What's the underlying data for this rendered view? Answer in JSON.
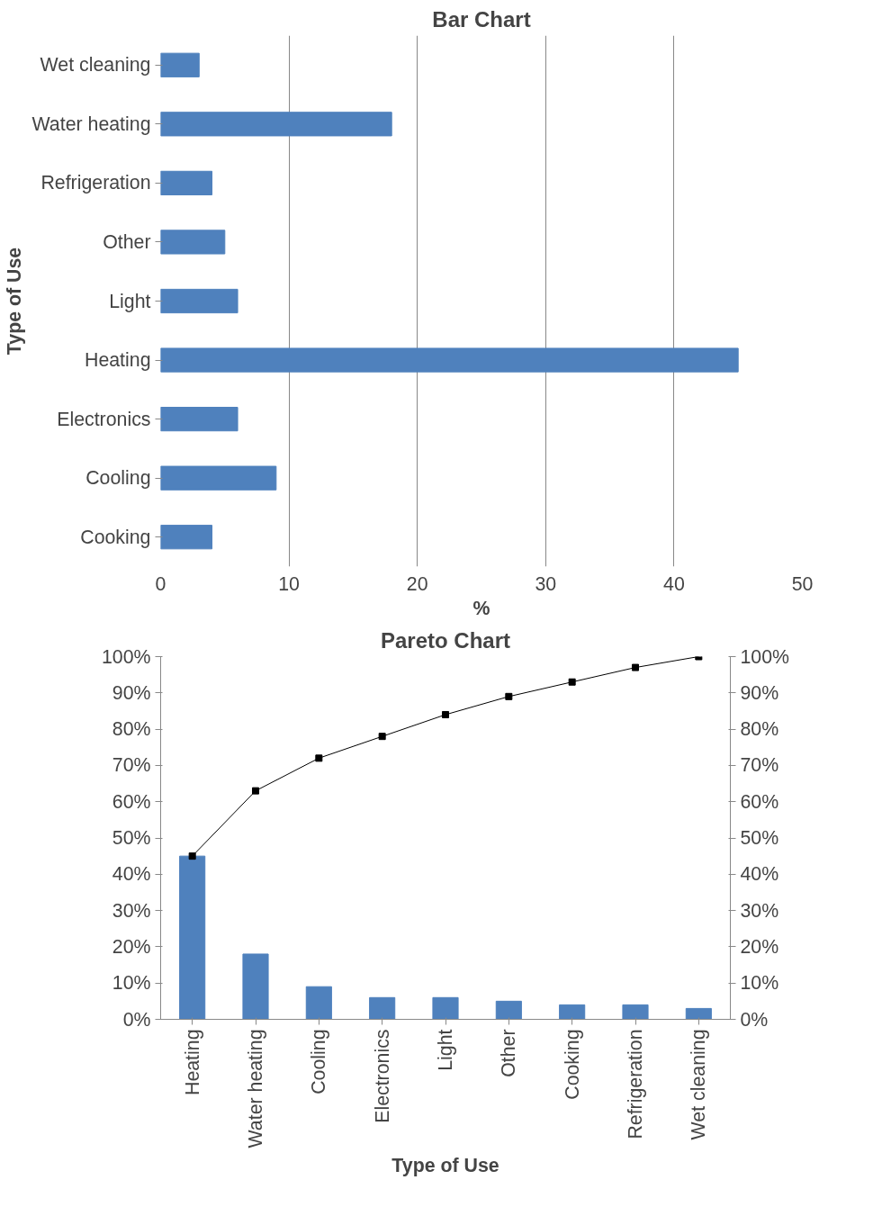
{
  "chart_data": [
    {
      "type": "bar",
      "title": "Bar Chart",
      "orientation": "horizontal",
      "xlabel": "%",
      "ylabel": "Type of Use",
      "categories": [
        "Wet cleaning",
        "Water heating",
        "Refrigeration",
        "Other",
        "Light",
        "Heating",
        "Electronics",
        "Cooling",
        "Cooking"
      ],
      "values": [
        3,
        18,
        4,
        5,
        6,
        45,
        6,
        9,
        4
      ],
      "color": "#4f81bd",
      "xlim": [
        0,
        50
      ],
      "xticks": [
        0,
        10,
        20,
        30,
        40,
        50
      ],
      "grid": "x"
    },
    {
      "type": "bar",
      "title": "Pareto Chart",
      "xlabel": "Type of Use",
      "categories": [
        "Heating",
        "Water heating",
        "Cooling",
        "Electronics",
        "Light",
        "Other",
        "Cooking",
        "Refrigeration",
        "Wet cleaning"
      ],
      "series": [
        {
          "type": "bar",
          "color": "#4f81bd",
          "values": [
            45,
            18,
            9,
            6,
            6,
            5,
            4,
            4,
            3
          ]
        },
        {
          "type": "line",
          "axis": "y2",
          "color": "#000000",
          "marker": "square",
          "values": [
            45,
            63,
            72,
            78,
            84,
            89,
            93,
            97,
            100
          ]
        }
      ],
      "ylim": [
        0,
        100
      ],
      "yticks": [
        {
          "value": 0,
          "label": "0%"
        },
        {
          "value": 10,
          "label": "10%"
        },
        {
          "value": 20,
          "label": "20%"
        },
        {
          "value": 30,
          "label": "30%"
        },
        {
          "value": 40,
          "label": "40%"
        },
        {
          "value": 50,
          "label": "50%"
        },
        {
          "value": 60,
          "label": "60%"
        },
        {
          "value": 70,
          "label": "70%"
        },
        {
          "value": 80,
          "label": "80%"
        },
        {
          "value": 90,
          "label": "90%"
        },
        {
          "value": 100,
          "label": "100%"
        }
      ],
      "y2lim": [
        0,
        100
      ],
      "y2ticks": [
        {
          "value": 0,
          "label": "0%"
        },
        {
          "value": 10,
          "label": "10%"
        },
        {
          "value": 20,
          "label": "20%"
        },
        {
          "value": 30,
          "label": "30%"
        },
        {
          "value": 40,
          "label": "40%"
        },
        {
          "value": 50,
          "label": "50%"
        },
        {
          "value": 60,
          "label": "60%"
        },
        {
          "value": 70,
          "label": "70%"
        },
        {
          "value": 80,
          "label": "80%"
        },
        {
          "value": 90,
          "label": "90%"
        },
        {
          "value": 100,
          "label": "100%"
        }
      ],
      "grid": false
    }
  ]
}
